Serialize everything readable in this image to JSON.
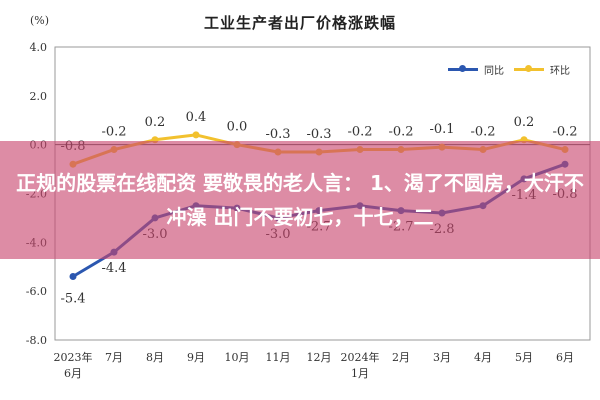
{
  "chart_data": {
    "type": "line",
    "title": "工业生产者出厂价格涨跌幅",
    "unit_label": "(%)",
    "categories": [
      "2023年\n6月",
      "7月",
      "8月",
      "9月",
      "10月",
      "11月",
      "12月",
      "2024年\n1月",
      "2月",
      "3月",
      "4月",
      "5月",
      "6月"
    ],
    "ylim": [
      -8.0,
      4.0
    ],
    "yticks": [
      "4.0",
      "2.0",
      "0.0",
      "-2.0",
      "-4.0",
      "-6.0",
      "-8.0"
    ],
    "series": [
      {
        "name": "同比",
        "color": "#2b57b0",
        "values": [
          -5.4,
          -4.4,
          -3.0,
          -2.5,
          -2.6,
          -3.0,
          -2.7,
          -2.5,
          -2.7,
          -2.8,
          -2.5,
          -1.4,
          -0.8
        ],
        "labels": [
          "-5.4",
          "-4.4",
          "-3.0",
          "",
          "",
          "-3.0",
          "-2.7",
          "",
          "-2.7",
          "-2.8",
          "",
          "-1.4",
          "-0.8"
        ]
      },
      {
        "name": "环比",
        "color": "#f2c12e",
        "values": [
          -0.8,
          -0.2,
          0.2,
          0.4,
          0.0,
          -0.3,
          -0.3,
          -0.2,
          -0.2,
          -0.1,
          -0.2,
          0.2,
          -0.2
        ],
        "labels": [
          "-0.8",
          "-0.2",
          "0.2",
          "0.4",
          "0.0",
          "-0.3",
          "-0.3",
          "-0.2",
          "-0.2",
          "-0.1",
          "-0.2",
          "0.2",
          "-0.2"
        ]
      }
    ],
    "grid": false,
    "legend_position": "top-right"
  },
  "overlay": {
    "text": "正规的股票在线配资 要敬畏的老人言： 1、渴了不圆房，大汗不冲澡 出门不要初七，十七，二"
  }
}
